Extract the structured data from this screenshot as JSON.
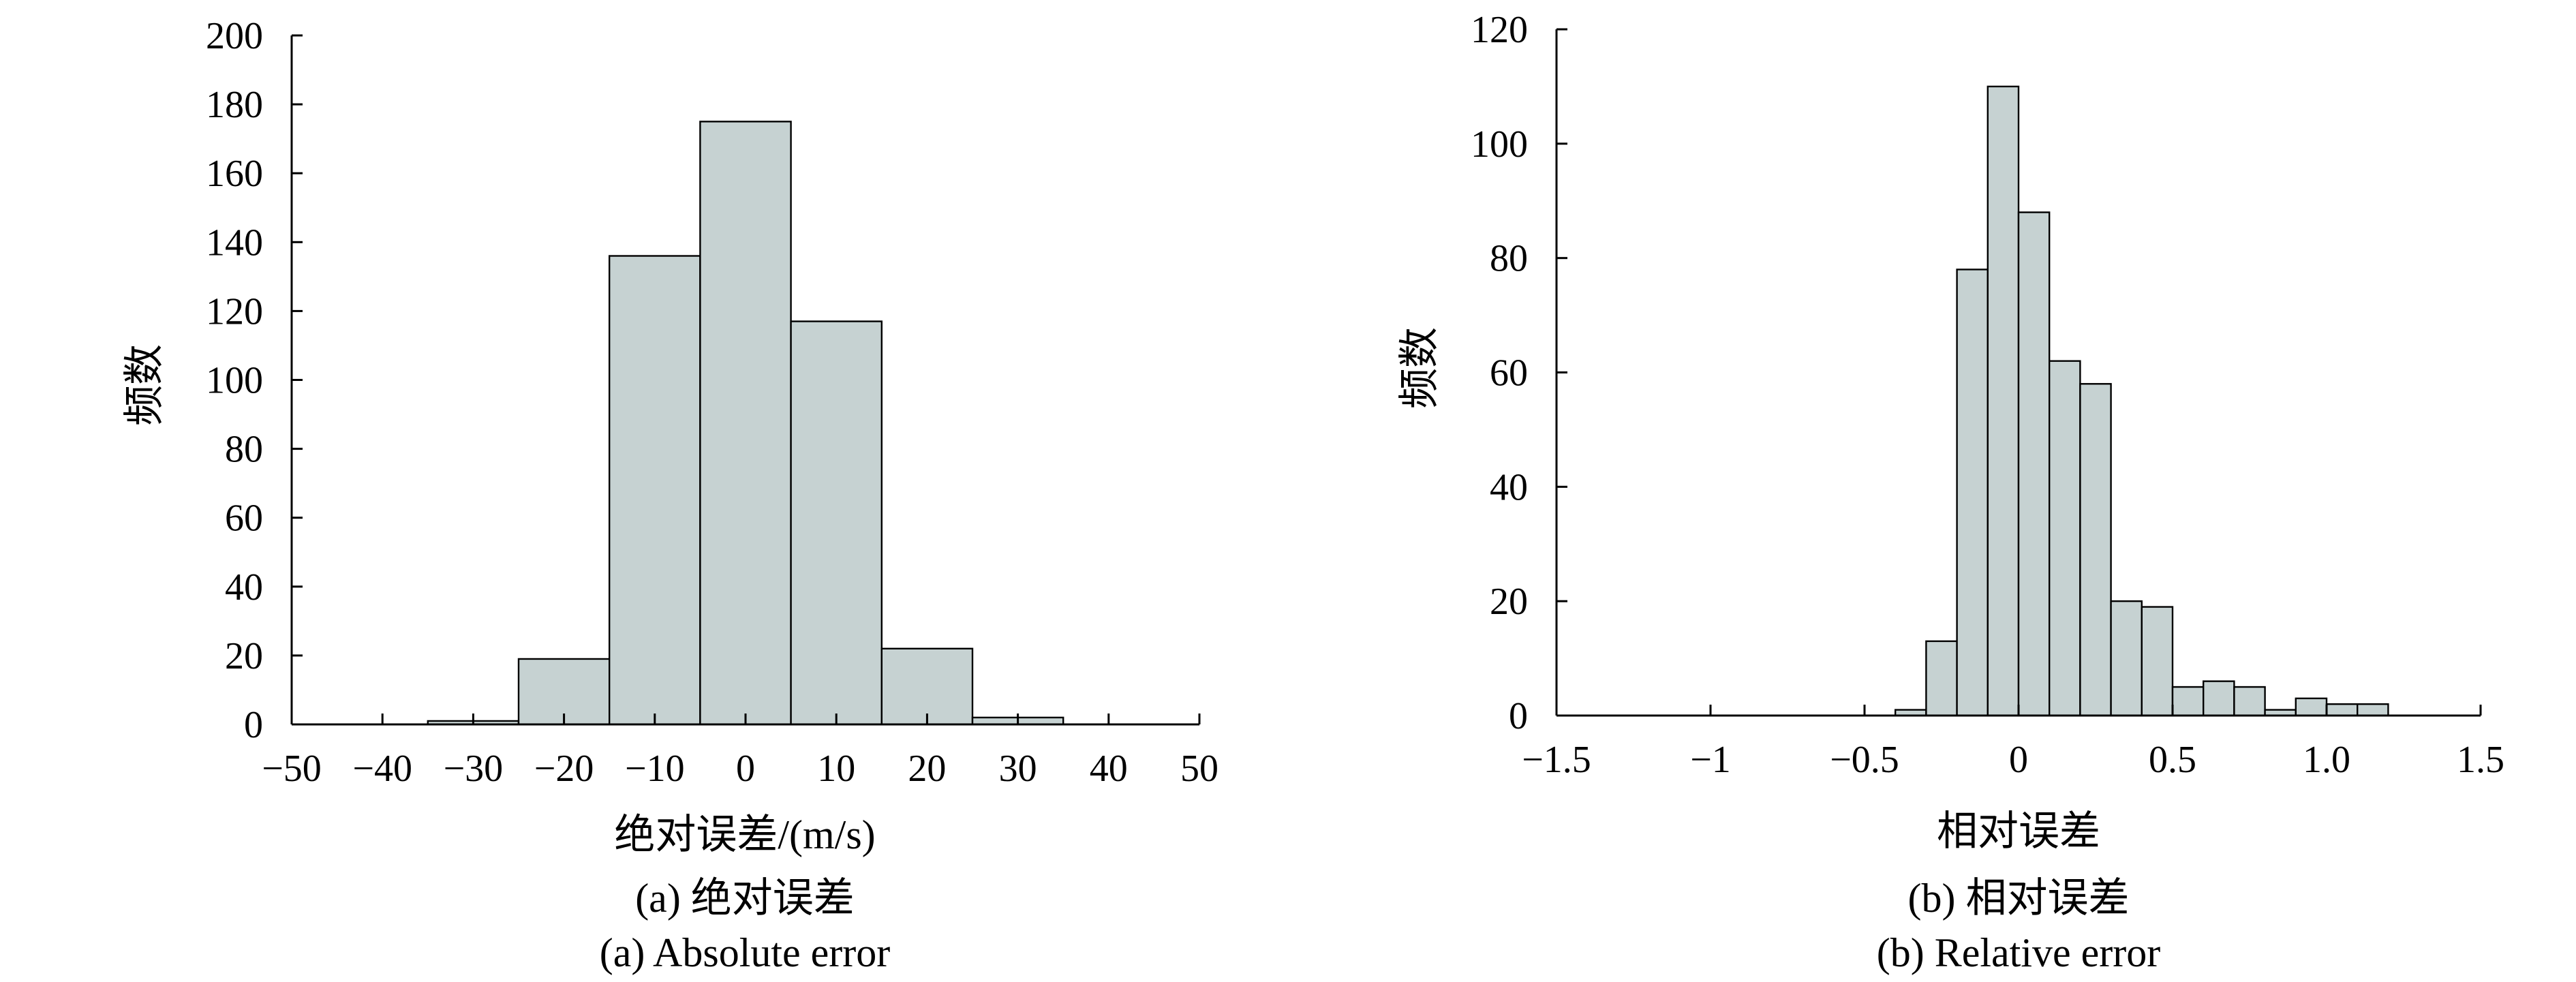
{
  "chart_data": [
    {
      "type": "bar",
      "subtype": "histogram",
      "xlabel": "绝对误差/(m/s)",
      "ylabel": "频数",
      "caption_cn": "(a) 绝对误差",
      "caption_en": "(a) Absolute error",
      "xlim": [
        -50,
        50
      ],
      "ylim": [
        0,
        200
      ],
      "xticks": [
        -50,
        -40,
        -30,
        -20,
        -10,
        0,
        10,
        20,
        30,
        40,
        50
      ],
      "xtick_labels": [
        "−50",
        "−40",
        "−30",
        "−20",
        "−10",
        "0",
        "10",
        "20",
        "30",
        "40",
        "50"
      ],
      "yticks": [
        0,
        20,
        40,
        60,
        80,
        100,
        120,
        140,
        160,
        180,
        200
      ],
      "ytick_labels": [
        "0",
        "20",
        "40",
        "60",
        "80",
        "100",
        "120",
        "140",
        "160",
        "180",
        "200"
      ],
      "bin_width": 10,
      "bin_starts": [
        -35,
        -25,
        -15,
        -5,
        5,
        15,
        25
      ],
      "values": [
        1,
        19,
        136,
        175,
        117,
        22,
        2
      ],
      "grid": false,
      "bar_color": "#c6d2d2"
    },
    {
      "type": "bar",
      "subtype": "histogram",
      "xlabel": "相对误差",
      "ylabel": "频数",
      "caption_cn": "(b) 相对误差",
      "caption_en": "(b) Relative error",
      "xlim": [
        -1.5,
        1.5
      ],
      "ylim": [
        0,
        120
      ],
      "xticks": [
        -1.5,
        -1,
        -0.5,
        0,
        0.5,
        1.0,
        1.5
      ],
      "xtick_labels": [
        "−1.5",
        "−1",
        "−0.5",
        "0",
        "0.5",
        "1.0",
        "1.5"
      ],
      "yticks": [
        0,
        20,
        40,
        60,
        80,
        100,
        120
      ],
      "ytick_labels": [
        "0",
        "20",
        "40",
        "60",
        "80",
        "100",
        "120"
      ],
      "bin_width": 0.1,
      "bin_starts": [
        -0.4,
        -0.3,
        -0.2,
        -0.1,
        0.0,
        0.1,
        0.2,
        0.3,
        0.4,
        0.5,
        0.6,
        0.7,
        0.8,
        0.9,
        1.0,
        1.1
      ],
      "values": [
        1,
        13,
        78,
        110,
        88,
        62,
        58,
        20,
        19,
        5,
        6,
        5,
        1,
        3,
        2,
        2
      ],
      "grid": false,
      "bar_color": "#c6d2d2"
    }
  ]
}
